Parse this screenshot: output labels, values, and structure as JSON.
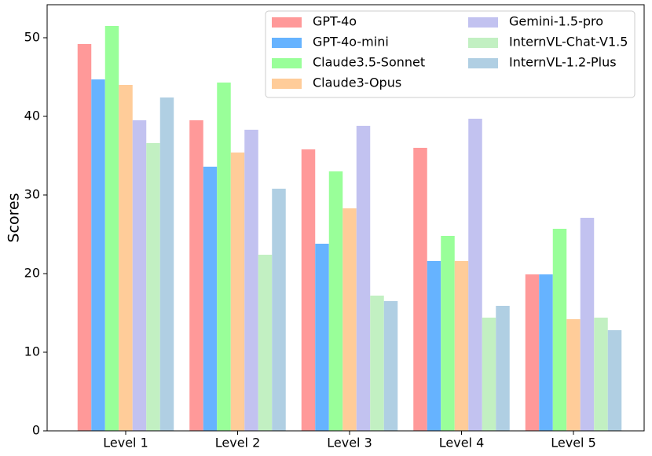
{
  "chart_data": {
    "type": "bar",
    "y_label": "Scores",
    "categories": [
      "Level 1",
      "Level 2",
      "Level 3",
      "Level 4",
      "Level 5"
    ],
    "series": [
      {
        "name": "GPT-4o",
        "color": "#ff9999",
        "values": [
          49.2,
          39.5,
          35.8,
          36.0,
          19.9
        ]
      },
      {
        "name": "GPT-4o-mini",
        "color": "#66b3ff",
        "values": [
          44.7,
          33.6,
          23.8,
          21.6,
          19.9
        ]
      },
      {
        "name": "Claude3.5-Sonnet",
        "color": "#99ff99",
        "values": [
          51.5,
          44.3,
          33.0,
          24.8,
          25.7
        ]
      },
      {
        "name": "Claude3-Opus",
        "color": "#ffcc99",
        "values": [
          44.0,
          35.4,
          28.3,
          21.6,
          14.2
        ]
      },
      {
        "name": "Gemini-1.5-pro",
        "color": "#c2c2f0",
        "values": [
          39.5,
          38.3,
          38.8,
          39.7,
          27.1
        ]
      },
      {
        "name": "InternVL-Chat-V1.5",
        "color": "#c2f0c2",
        "values": [
          36.6,
          22.4,
          17.2,
          14.4,
          14.4
        ]
      },
      {
        "name": "InternVL-1.2-Plus",
        "color": "#b0cfe3",
        "values": [
          42.4,
          30.8,
          16.5,
          15.9,
          12.8
        ]
      }
    ],
    "ylim": [
      0,
      54.2
    ],
    "yticks": [
      0,
      10,
      20,
      30,
      40,
      50
    ],
    "legend": "upper right"
  }
}
